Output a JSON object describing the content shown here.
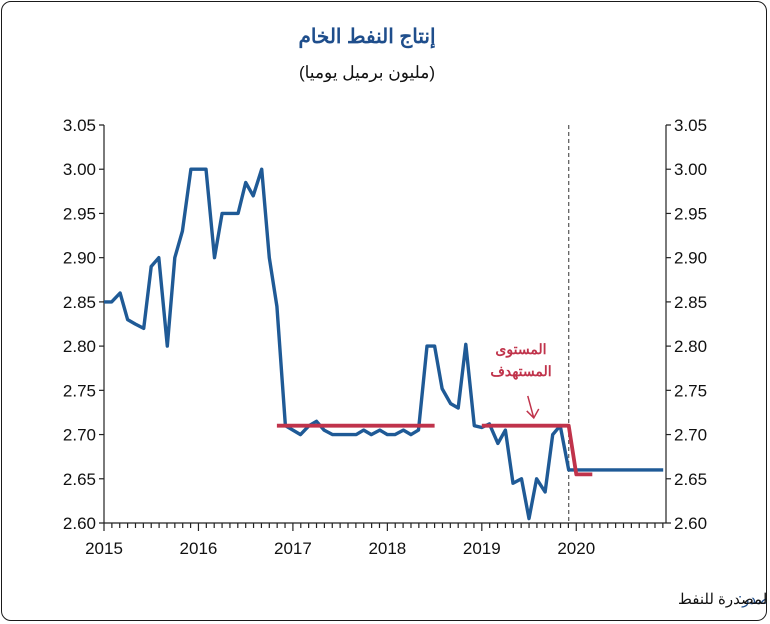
{
  "chart_data": {
    "type": "line",
    "title": "إنتاج النفط الخام",
    "subtitle": "(مليون برميل يوميا)",
    "x_tick_labels": [
      "2015",
      "2016",
      "2017",
      "2018",
      "2019",
      "2020"
    ],
    "y_tick_labels": [
      "2.60",
      "2.65",
      "2.70",
      "2.75",
      "2.80",
      "2.85",
      "2.90",
      "2.95",
      "3.00",
      "3.05"
    ],
    "ylim": [
      2.6,
      3.05
    ],
    "xlim": [
      2015.0,
      2020.95
    ],
    "y_axis_right_mirror": true,
    "grid": false,
    "vertical_marker_x": 2019.92,
    "series": [
      {
        "color": "#1f5a96",
        "x": [
          2015.0,
          2015.08,
          2015.17,
          2015.25,
          2015.33,
          2015.42,
          2015.5,
          2015.58,
          2015.67,
          2015.75,
          2015.83,
          2015.92,
          2016.0,
          2016.08,
          2016.17,
          2016.25,
          2016.33,
          2016.42,
          2016.5,
          2016.58,
          2016.67,
          2016.75,
          2016.83,
          2016.92,
          2017.0,
          2017.08,
          2017.17,
          2017.25,
          2017.33,
          2017.42,
          2017.5,
          2017.58,
          2017.67,
          2017.75,
          2017.83,
          2017.92,
          2018.0,
          2018.08,
          2018.17,
          2018.25,
          2018.33,
          2018.42,
          2018.5,
          2018.58,
          2018.67,
          2018.75,
          2018.83,
          2018.92,
          2019.0,
          2019.08,
          2019.17,
          2019.25,
          2019.33,
          2019.42,
          2019.5,
          2019.58,
          2019.67,
          2019.75,
          2019.83,
          2019.92,
          2020.0,
          2020.08,
          2020.17,
          2020.25,
          2020.33,
          2020.42,
          2020.5,
          2020.58,
          2020.67,
          2020.75,
          2020.83,
          2020.92
        ],
        "values": [
          2.85,
          2.85,
          2.86,
          2.83,
          2.825,
          2.82,
          2.89,
          2.9,
          2.8,
          2.9,
          2.93,
          3.0,
          3.0,
          3.0,
          2.9,
          2.95,
          2.95,
          2.95,
          2.985,
          2.97,
          3.0,
          2.9,
          2.845,
          2.71,
          2.705,
          2.7,
          2.71,
          2.715,
          2.705,
          2.7,
          2.7,
          2.7,
          2.7,
          2.705,
          2.7,
          2.705,
          2.7,
          2.7,
          2.705,
          2.7,
          2.705,
          2.8,
          2.8,
          2.752,
          2.735,
          2.73,
          2.802,
          2.71,
          2.708,
          2.712,
          2.69,
          2.705,
          2.645,
          2.65,
          2.605,
          2.65,
          2.635,
          2.7,
          2.71,
          2.66,
          2.66,
          2.66,
          2.66,
          2.66,
          2.66,
          2.66,
          2.66,
          2.66,
          2.66,
          2.66,
          2.66,
          2.66
        ]
      },
      {
        "name": "المستوى المستهدف",
        "color": "#c0334b",
        "x": [
          2016.83,
          2018.5,
          null,
          2019.0,
          2019.92,
          2020.0,
          2020.17
        ],
        "values": [
          2.71,
          2.71,
          null,
          2.71,
          2.71,
          2.655,
          2.655
        ]
      }
    ],
    "annotations": [
      {
        "line1": "المستوى",
        "line2": "المستهدف",
        "arrow_to_x": 2019.55,
        "arrow_to_y": 2.712
      }
    ],
    "source_label": "المصدر:",
    "source_text": "منظمة الدول المصدرة للنفط"
  }
}
